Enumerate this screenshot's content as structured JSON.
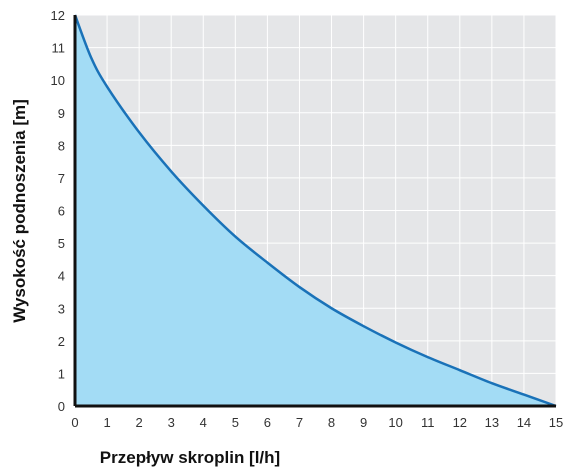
{
  "chart_data": {
    "type": "area",
    "xlabel": "Przepływ skroplin [l/h]",
    "ylabel": "Wysokość podnoszenia [m]",
    "xlim": [
      0,
      15
    ],
    "ylim": [
      0,
      12
    ],
    "x_ticks": [
      "0",
      "1",
      "2",
      "3",
      "4",
      "5",
      "6",
      "7",
      "8",
      "9",
      "10",
      "11",
      "12",
      "13",
      "14",
      "15"
    ],
    "y_ticks": [
      "0",
      "1",
      "2",
      "3",
      "4",
      "5",
      "6",
      "7",
      "8",
      "9",
      "10",
      "11",
      "12"
    ],
    "grid": true,
    "series": [
      {
        "x": [
          0,
          0.5,
          1,
          2,
          3,
          4,
          5,
          6,
          7,
          8,
          9,
          10,
          11,
          12,
          13,
          14,
          15
        ],
        "y": [
          12,
          10.7,
          9.8,
          8.4,
          7.2,
          6.15,
          5.2,
          4.4,
          3.65,
          3.0,
          2.45,
          1.95,
          1.5,
          1.1,
          0.7,
          0.35,
          0
        ]
      }
    ],
    "colors": {
      "plot_background": "#e5e6e8",
      "grid": "#ffffff",
      "area_fill": "#a3dcf5",
      "line": "#1a72b8",
      "axis": "#111111"
    }
  }
}
